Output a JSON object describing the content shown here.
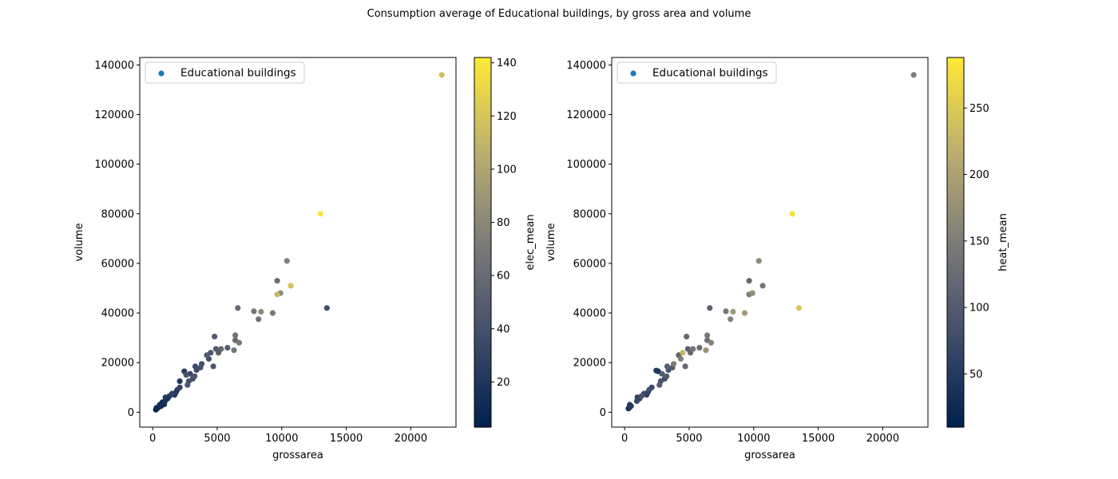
{
  "suptitle": "Consumption average of Educational buildings, by gross area and volume",
  "chart_data": [
    {
      "type": "scatter",
      "title": "",
      "xlabel": "grossarea",
      "ylabel": "volume",
      "xlim": [
        -1000,
        23500
      ],
      "ylim": [
        -6000,
        143000
      ],
      "xticks": [
        0,
        5000,
        10000,
        15000,
        20000
      ],
      "yticks": [
        0,
        20000,
        40000,
        60000,
        80000,
        100000,
        120000,
        140000
      ],
      "legend": {
        "label": "Educational buildings",
        "placement": "upper-left",
        "marker_color": "#1f77b4"
      },
      "colorbar": {
        "label": "elec_mean",
        "colormap": "cividis",
        "range": [
          3,
          142
        ],
        "ticks": [
          20,
          40,
          60,
          80,
          100,
          120,
          140
        ]
      },
      "points": [
        {
          "x": 22400,
          "y": 136000,
          "c": 118
        },
        {
          "x": 13000,
          "y": 80000,
          "c": 140
        },
        {
          "x": 10700,
          "y": 51000,
          "c": 120
        },
        {
          "x": 10400,
          "y": 61000,
          "c": 75
        },
        {
          "x": 9900,
          "y": 48000,
          "c": 82
        },
        {
          "x": 9650,
          "y": 53000,
          "c": 62
        },
        {
          "x": 9650,
          "y": 47500,
          "c": 112
        },
        {
          "x": 9300,
          "y": 40000,
          "c": 70
        },
        {
          "x": 8400,
          "y": 40500,
          "c": 82
        },
        {
          "x": 8200,
          "y": 37500,
          "c": 65
        },
        {
          "x": 7850,
          "y": 40700,
          "c": 70
        },
        {
          "x": 13500,
          "y": 42000,
          "c": 40
        },
        {
          "x": 6600,
          "y": 42000,
          "c": 60
        },
        {
          "x": 6700,
          "y": 28000,
          "c": 70
        },
        {
          "x": 6400,
          "y": 31000,
          "c": 65
        },
        {
          "x": 6400,
          "y": 29000,
          "c": 60
        },
        {
          "x": 6300,
          "y": 25000,
          "c": 68
        },
        {
          "x": 5800,
          "y": 26000,
          "c": 50
        },
        {
          "x": 5300,
          "y": 25500,
          "c": 58
        },
        {
          "x": 5100,
          "y": 24000,
          "c": 50
        },
        {
          "x": 4900,
          "y": 25500,
          "c": 45
        },
        {
          "x": 4800,
          "y": 30500,
          "c": 48
        },
        {
          "x": 4700,
          "y": 18500,
          "c": 45
        },
        {
          "x": 4500,
          "y": 24000,
          "c": 45
        },
        {
          "x": 4350,
          "y": 21500,
          "c": 40
        },
        {
          "x": 4200,
          "y": 23000,
          "c": 48
        },
        {
          "x": 3800,
          "y": 19500,
          "c": 40
        },
        {
          "x": 3700,
          "y": 18000,
          "c": 42
        },
        {
          "x": 3400,
          "y": 17000,
          "c": 35
        },
        {
          "x": 3300,
          "y": 18500,
          "c": 38
        },
        {
          "x": 3250,
          "y": 14500,
          "c": 45
        },
        {
          "x": 3100,
          "y": 13500,
          "c": 40
        },
        {
          "x": 2900,
          "y": 15500,
          "c": 35
        },
        {
          "x": 2800,
          "y": 12500,
          "c": 40
        },
        {
          "x": 2700,
          "y": 11000,
          "c": 45
        },
        {
          "x": 2600,
          "y": 15000,
          "c": 42
        },
        {
          "x": 2450,
          "y": 16500,
          "c": 25
        },
        {
          "x": 2100,
          "y": 12500,
          "c": 20
        },
        {
          "x": 2100,
          "y": 10000,
          "c": 30
        },
        {
          "x": 1900,
          "y": 9000,
          "c": 25
        },
        {
          "x": 1800,
          "y": 8000,
          "c": 20
        },
        {
          "x": 1700,
          "y": 7000,
          "c": 22
        },
        {
          "x": 1500,
          "y": 7500,
          "c": 28
        },
        {
          "x": 1300,
          "y": 6500,
          "c": 20
        },
        {
          "x": 1150,
          "y": 5500,
          "c": 15
        },
        {
          "x": 1000,
          "y": 6000,
          "c": 18
        },
        {
          "x": 950,
          "y": 4500,
          "c": 15
        },
        {
          "x": 850,
          "y": 3500,
          "c": 12
        },
        {
          "x": 750,
          "y": 4000,
          "c": 10
        },
        {
          "x": 650,
          "y": 2500,
          "c": 8
        },
        {
          "x": 550,
          "y": 3000,
          "c": 10
        },
        {
          "x": 450,
          "y": 2000,
          "c": 8
        },
        {
          "x": 350,
          "y": 1500,
          "c": 6
        },
        {
          "x": 250,
          "y": 1000,
          "c": 5
        },
        {
          "x": 300,
          "y": 1800,
          "c": 8
        },
        {
          "x": 500,
          "y": 2200,
          "c": 12
        },
        {
          "x": 700,
          "y": 2800,
          "c": 7
        },
        {
          "x": 900,
          "y": 3200,
          "c": 14
        }
      ]
    },
    {
      "type": "scatter",
      "title": "",
      "xlabel": "grossarea",
      "ylabel": "volume",
      "xlim": [
        -1000,
        23500
      ],
      "ylim": [
        -6000,
        143000
      ],
      "xticks": [
        0,
        5000,
        10000,
        15000,
        20000
      ],
      "yticks": [
        0,
        20000,
        40000,
        60000,
        80000,
        100000,
        120000,
        140000
      ],
      "legend": {
        "label": "Educational buildings",
        "placement": "upper-left",
        "marker_color": "#1f77b4"
      },
      "colorbar": {
        "label": "heat_mean",
        "colormap": "cividis",
        "range": [
          10,
          288
        ],
        "ticks": [
          50,
          100,
          150,
          200,
          250
        ]
      },
      "points": [
        {
          "x": 22400,
          "y": 136000,
          "c": 150
        },
        {
          "x": 13000,
          "y": 80000,
          "c": 280
        },
        {
          "x": 13500,
          "y": 42000,
          "c": 250
        },
        {
          "x": 10700,
          "y": 51000,
          "c": 140
        },
        {
          "x": 10400,
          "y": 61000,
          "c": 165
        },
        {
          "x": 9900,
          "y": 48000,
          "c": 175
        },
        {
          "x": 9650,
          "y": 53000,
          "c": 120
        },
        {
          "x": 9650,
          "y": 47500,
          "c": 150
        },
        {
          "x": 9300,
          "y": 40000,
          "c": 190
        },
        {
          "x": 8400,
          "y": 40500,
          "c": 190
        },
        {
          "x": 8200,
          "y": 37500,
          "c": 160
        },
        {
          "x": 7850,
          "y": 40700,
          "c": 140
        },
        {
          "x": 6600,
          "y": 42000,
          "c": 110
        },
        {
          "x": 6700,
          "y": 28000,
          "c": 160
        },
        {
          "x": 6400,
          "y": 31000,
          "c": 140
        },
        {
          "x": 6400,
          "y": 29000,
          "c": 130
        },
        {
          "x": 6300,
          "y": 25000,
          "c": 180
        },
        {
          "x": 5800,
          "y": 26000,
          "c": 130
        },
        {
          "x": 5300,
          "y": 25500,
          "c": 140
        },
        {
          "x": 5100,
          "y": 24000,
          "c": 120
        },
        {
          "x": 4900,
          "y": 25500,
          "c": 110
        },
        {
          "x": 4800,
          "y": 30500,
          "c": 120
        },
        {
          "x": 4700,
          "y": 18500,
          "c": 120
        },
        {
          "x": 4500,
          "y": 24000,
          "c": 230
        },
        {
          "x": 4350,
          "y": 21500,
          "c": 160
        },
        {
          "x": 4200,
          "y": 23000,
          "c": 110
        },
        {
          "x": 3800,
          "y": 19500,
          "c": 150
        },
        {
          "x": 3700,
          "y": 18000,
          "c": 100
        },
        {
          "x": 3400,
          "y": 17000,
          "c": 90
        },
        {
          "x": 3300,
          "y": 18500,
          "c": 110
        },
        {
          "x": 3250,
          "y": 14500,
          "c": 100
        },
        {
          "x": 3100,
          "y": 13500,
          "c": 80
        },
        {
          "x": 2900,
          "y": 15500,
          "c": 100
        },
        {
          "x": 2800,
          "y": 12500,
          "c": 90
        },
        {
          "x": 2700,
          "y": 11000,
          "c": 100
        },
        {
          "x": 2600,
          "y": 16500,
          "c": 40
        },
        {
          "x": 2450,
          "y": 16800,
          "c": 45
        },
        {
          "x": 2100,
          "y": 10000,
          "c": 70
        },
        {
          "x": 1900,
          "y": 9000,
          "c": 80
        },
        {
          "x": 1800,
          "y": 8000,
          "c": 55
        },
        {
          "x": 1700,
          "y": 7000,
          "c": 60
        },
        {
          "x": 1500,
          "y": 7500,
          "c": 70
        },
        {
          "x": 1300,
          "y": 6500,
          "c": 90
        },
        {
          "x": 1150,
          "y": 5500,
          "c": 65
        },
        {
          "x": 1000,
          "y": 6000,
          "c": 60
        },
        {
          "x": 950,
          "y": 4500,
          "c": 70
        },
        {
          "x": 500,
          "y": 2500,
          "c": 50
        },
        {
          "x": 400,
          "y": 2000,
          "c": 40
        },
        {
          "x": 300,
          "y": 1500,
          "c": 30
        },
        {
          "x": 400,
          "y": 3000,
          "c": 45
        }
      ]
    }
  ]
}
